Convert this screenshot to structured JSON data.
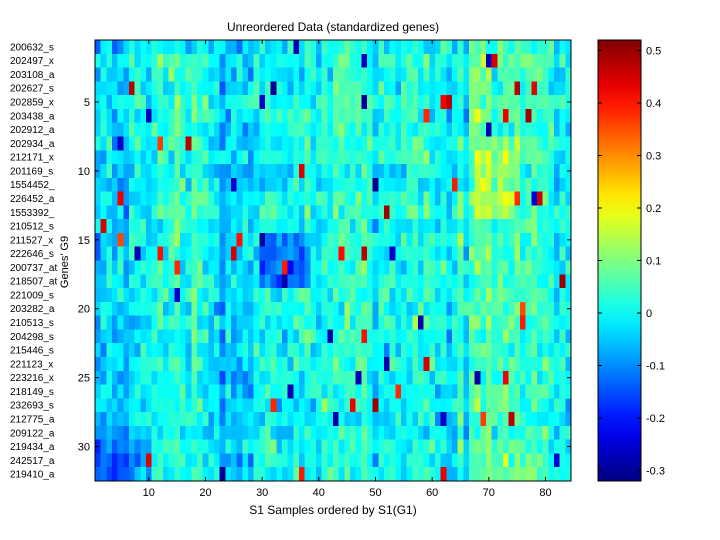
{
  "chart_data": [
    {
      "type": "heatmap",
      "title": "Unreordered Data (standardized genes)",
      "xlabel": "S1 Samples ordered by S1(G1)",
      "ylabel": "Genes’ G9",
      "n_rows": 32,
      "n_cols": 84,
      "xticks": [
        10,
        20,
        30,
        40,
        50,
        60,
        70,
        80
      ],
      "yticks": [
        5,
        10,
        15,
        20,
        25,
        30
      ],
      "row_labels": [
        "200632_s",
        "202497_x",
        "203108_a",
        "202627_s",
        "202859_x",
        "203438_a",
        "202912_a",
        "202934_a",
        "212171_x",
        "201169_s",
        "1554452_",
        "226452_a",
        "1553392_",
        "210512_s",
        "211527_x",
        "222646_s",
        "200737_at",
        "218507_at",
        "221009_s",
        "203282_a",
        "210513_s",
        "204298_s",
        "215446_s",
        "221123_x",
        "223216_x",
        "218149_s",
        "232693_s",
        "212775_a",
        "209122_a",
        "219434_a",
        "242517_a",
        "219410_a"
      ],
      "colorbar": {
        "range": [
          -0.32,
          0.52
        ],
        "ticks": [
          -0.3,
          -0.2,
          -0.1,
          0,
          0.1,
          0.2,
          0.3,
          0.4,
          0.5
        ],
        "tick_labels": [
          "-0.3",
          "-0.2",
          "-0.1",
          "0",
          "0.1",
          "0.2",
          "0.3",
          "0.4",
          "0.5"
        ],
        "colormap": "jet"
      }
    }
  ]
}
